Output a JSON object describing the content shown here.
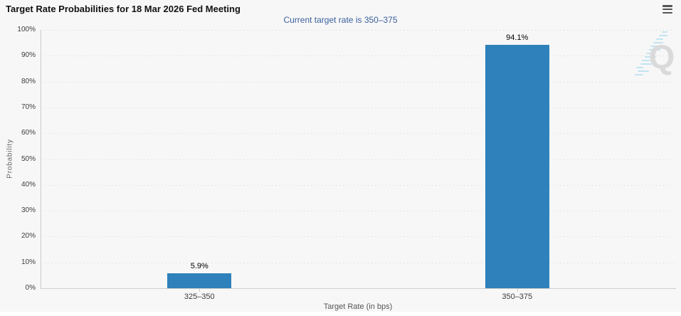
{
  "header": {
    "icons": {
      "menu": "hamburger-menu-icon"
    }
  },
  "chart_data": {
    "type": "bar",
    "title": "Target Rate Probabilities for 18 Mar 2026 Fed Meeting",
    "subtitle": "Current target rate is 350–375",
    "categories": [
      "325–350",
      "350–375"
    ],
    "values": [
      5.9,
      94.1
    ],
    "data_labels": [
      "5.9%",
      "94.1%"
    ],
    "xlabel": "Target Rate (in bps)",
    "ylabel": "Probability",
    "ylim": [
      0,
      100
    ],
    "ytick_step": 10,
    "ytick_labels": [
      "0%",
      "10%",
      "20%",
      "30%",
      "40%",
      "50%",
      "60%",
      "70%",
      "80%",
      "90%",
      "100%"
    ],
    "grid": "dotted-horizontal",
    "legend": "none",
    "bar_color": "#2e81ba"
  },
  "watermark": {
    "letter": "Q"
  },
  "colors": {
    "background": "#f7f7f7",
    "bar": "#2e81ba",
    "subtitle_text": "#3a5f9e",
    "grid": "#d8d8d8",
    "axis": "#c9c9c9",
    "watermark_q": "#d6d6d6",
    "watermark_dashes": "#b9e1f1"
  }
}
